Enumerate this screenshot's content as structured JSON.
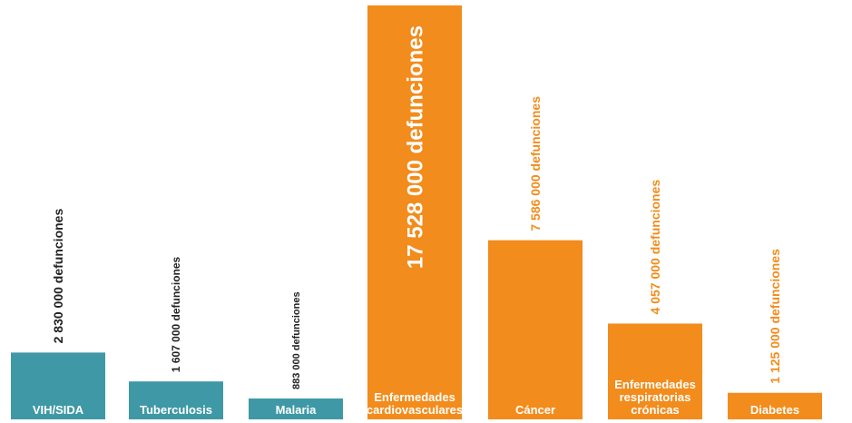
{
  "chart_data": {
    "type": "bar",
    "categories": [
      "VIH/SIDA",
      "Tuberculosis",
      "Malaria",
      "Enfermedades cardiovasculares",
      "Cáncer",
      "Enfermedades respiratorias crónicas",
      "Diabetes"
    ],
    "category_lines": [
      [
        "VIH/SIDA"
      ],
      [
        "Tuberculosis"
      ],
      [
        "Malaria"
      ],
      [
        "Enfermedades",
        "cardiovasculares"
      ],
      [
        "Cáncer"
      ],
      [
        "Enfermedades",
        "respiratorias",
        "crónicas"
      ],
      [
        "Diabetes"
      ]
    ],
    "values": [
      2830000,
      1607000,
      883000,
      17528000,
      7586000,
      4057000,
      1125000
    ],
    "value_labels": [
      "2 830 000 defunciones",
      "1 607 000 defunciones",
      "883 000 defunciones",
      "17 528 000 defunciones",
      "7 586 000 defunciones",
      "4 057 000 defunciones",
      "1 125 000 defunciones"
    ],
    "bar_colors": [
      "#3f98a6",
      "#3f98a6",
      "#3f98a6",
      "#f28c1c",
      "#f28c1c",
      "#f28c1c",
      "#f28c1c"
    ],
    "value_label_colors": [
      "#222222",
      "#222222",
      "#222222",
      "#ffffff",
      "#f28c1c",
      "#f28c1c",
      "#f28c1c"
    ],
    "ylim": [
      0,
      17528000
    ],
    "grid": false,
    "title": "",
    "xlabel": "",
    "ylabel": ""
  }
}
